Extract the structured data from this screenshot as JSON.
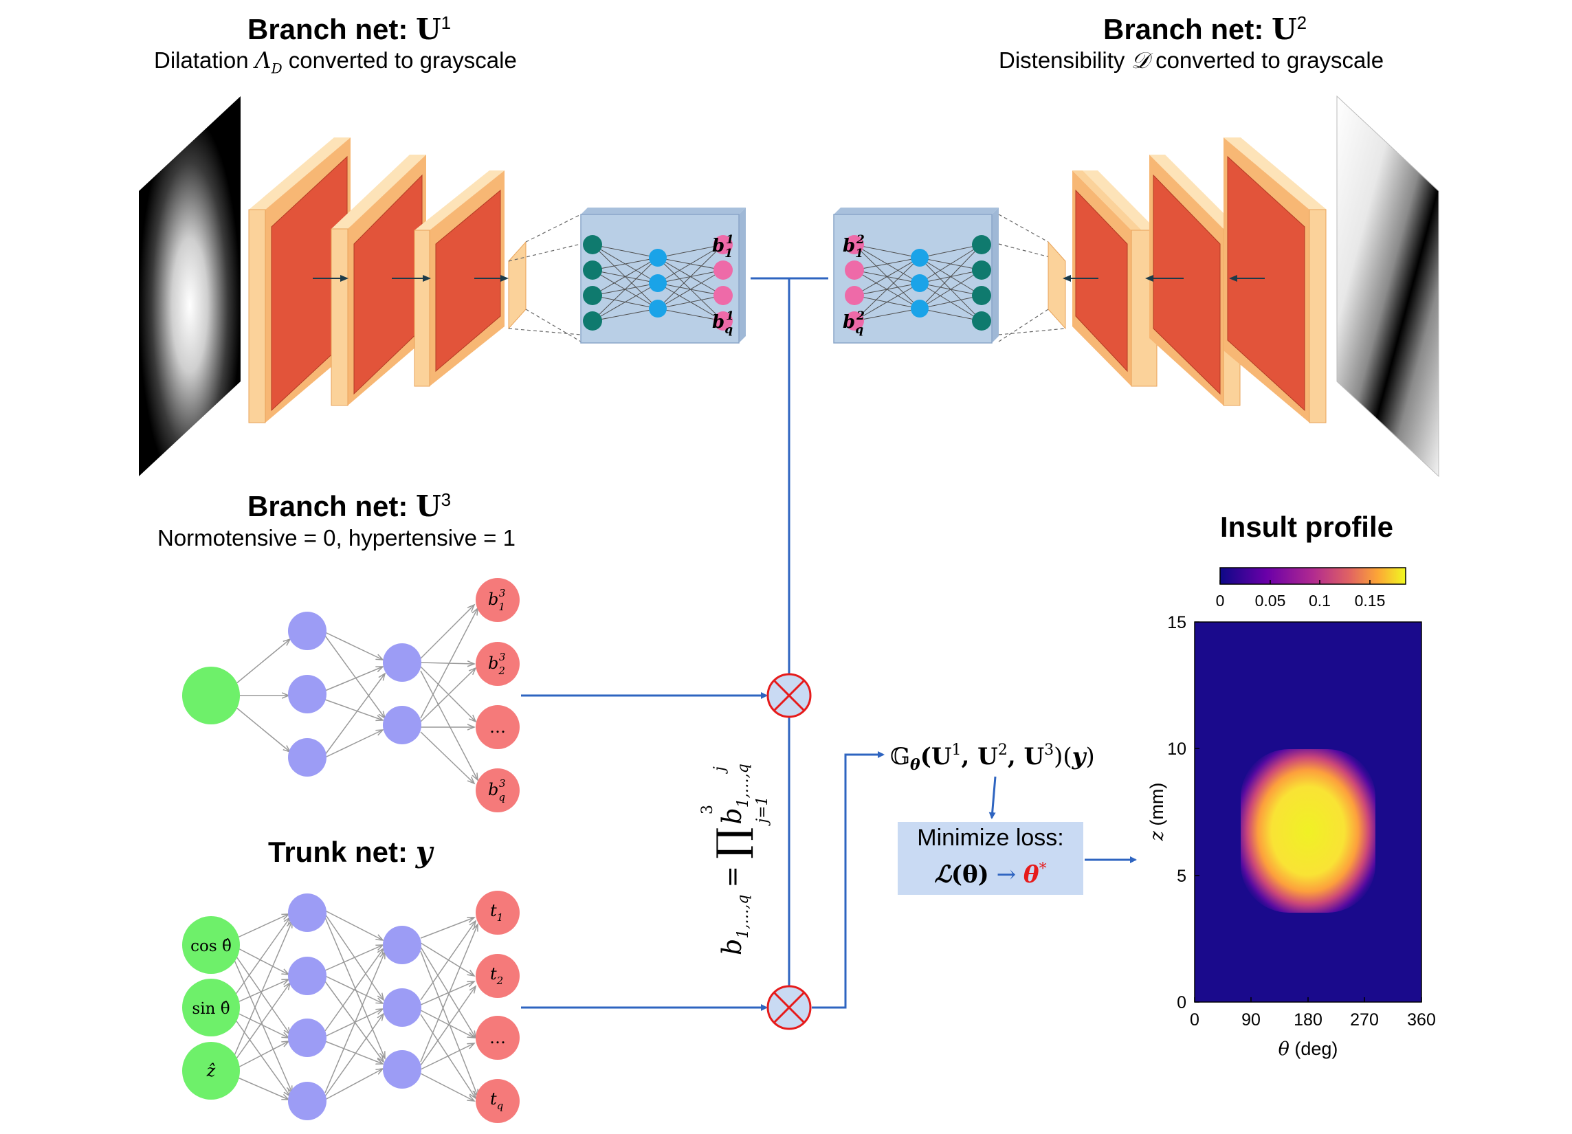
{
  "branch1": {
    "title": "Branch net:",
    "symbol": "U",
    "sup": "1",
    "subtitle_pre": "Dilatation ",
    "subtitle_sym": "Λ",
    "subtitle_sub": "D",
    "subtitle_post": " converted to grayscale",
    "out_labels": [
      "b",
      "b"
    ],
    "out_subs": [
      "1",
      "q"
    ],
    "out_sup": "1"
  },
  "branch2": {
    "title": "Branch net:",
    "symbol": "U",
    "sup": "2",
    "subtitle_pre": "Distensibility ",
    "subtitle_sym": "𝒟",
    "subtitle_post": " converted to grayscale",
    "out_labels": [
      "b",
      "b"
    ],
    "out_subs": [
      "1",
      "q"
    ],
    "out_sup": "2"
  },
  "branch3": {
    "title": "Branch net:",
    "symbol": "U",
    "sup": "3",
    "subtitle": "Normotensive = 0, hypertensive = 1",
    "outputs": [
      {
        "base": "b",
        "sub": "1",
        "sup": "3"
      },
      {
        "base": "b",
        "sub": "2",
        "sup": "3"
      },
      {
        "base": "…",
        "sub": "",
        "sup": ""
      },
      {
        "base": "b",
        "sub": "q",
        "sup": "3"
      }
    ]
  },
  "trunk": {
    "title": "Trunk net:",
    "symbol": "y",
    "inputs": [
      "cos θ̂",
      "sin θ̂",
      "ẑ"
    ],
    "outputs": [
      {
        "base": "t",
        "sub": "1"
      },
      {
        "base": "t",
        "sub": "2"
      },
      {
        "base": "…",
        "sub": ""
      },
      {
        "base": "t",
        "sub": "q"
      }
    ]
  },
  "product_formula": {
    "lhs": "b",
    "lhs_sub": "1,…,q",
    "eq": "=",
    "prod": "∏",
    "upper": "3",
    "lower": "j=1",
    "term": "b",
    "term_sub": "1,…,q",
    "term_sup": "j"
  },
  "operator": {
    "G": "𝔾",
    "G_sub": "θ",
    "args": "(U",
    "s1": "1",
    "comma1": ", U",
    "s2": "2",
    "comma2": ", U",
    "s3": "3",
    "close": ")(",
    "y": "y",
    "end": ")"
  },
  "loss": {
    "line1": "Minimize loss:",
    "L": "ℒ",
    "theta": "(θ)",
    "arrow": " → ",
    "theta_star": "θ",
    "star": "*"
  },
  "insult_profile": {
    "title": "Insult profile",
    "colorbar_ticks": [
      "0",
      "0.05",
      "0.1",
      "0.15"
    ],
    "x_ticks": [
      "0",
      "90",
      "180",
      "270",
      "360"
    ],
    "y_ticks": [
      "0",
      "5",
      "10",
      "15"
    ],
    "x_label_sym": "θ",
    "x_label_unit": " (deg)",
    "y_label_sym": "z",
    "y_label_unit": " (mm)"
  },
  "colors": {
    "arrow": "#2e64c0",
    "input_node": "#6ef06a",
    "hidden_node": "#9c9cf5",
    "output_node": "#f57a7a",
    "mult": "#e61b1b",
    "conv_face": "#e2543a",
    "conv_edge": "#fbd29a",
    "fc_box": "#b9cfe6",
    "teal": "#0f7a6e",
    "cyan": "#1aa3e8",
    "pink": "#ee6aa8"
  }
}
